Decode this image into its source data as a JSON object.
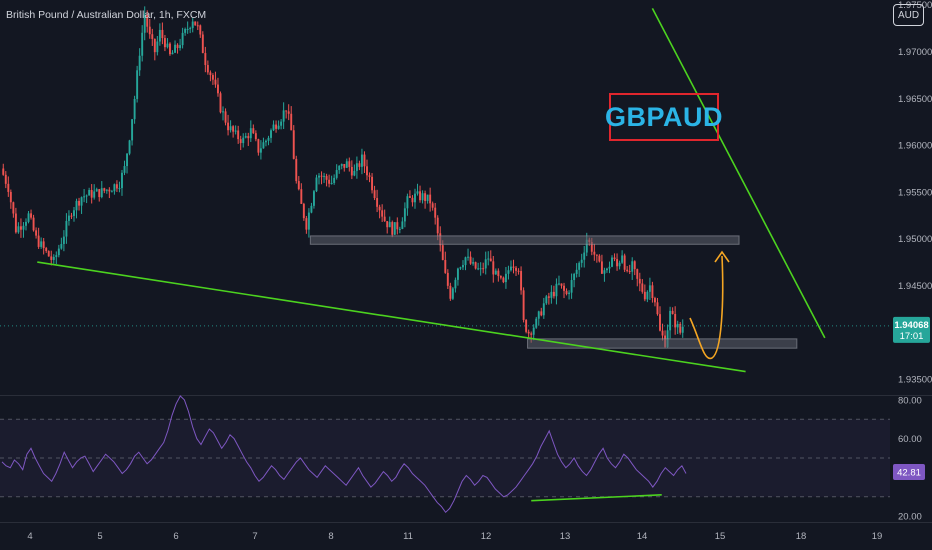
{
  "header": {
    "symbol_title": "British Pound / Australian Dollar, 1h, FXCM"
  },
  "currency_button": {
    "label": "AUD"
  },
  "annotation": {
    "label": "GBPAUD"
  },
  "colors": {
    "background": "#131722",
    "bull": "#26a69a",
    "bear": "#ef5350",
    "trendline": "#4cd31f",
    "zone": "#5d606b",
    "arrow": "#f5a623",
    "rsi_line": "#7e57c2",
    "badge_border": "#e0262d",
    "badge_text": "#2bb4e6"
  },
  "chart_data": [
    {
      "type": "candlestick",
      "title": "British Pound / Australian Dollar, 1h, FXCM",
      "y_ticks": [
        "1.97000",
        "1.96500",
        "1.96000",
        "1.95500",
        "1.95000",
        "1.94500",
        "1.93500"
      ],
      "y_top_partial": "1.97500",
      "x_ticks": [
        "4",
        "5",
        "6",
        "7",
        "8",
        "11",
        "12",
        "13",
        "14",
        "15",
        "18",
        "19"
      ],
      "current_price": "1.94068",
      "countdown": "17:01",
      "ylim": [
        1.9333,
        1.9755
      ],
      "price_path": [
        [
          0,
          1.9575
        ],
        [
          3,
          1.9555
        ],
        [
          6,
          1.951
        ],
        [
          8,
          1.9515
        ],
        [
          11,
          1.9525
        ],
        [
          14,
          1.95
        ],
        [
          18,
          1.9485
        ],
        [
          21,
          1.9475
        ],
        [
          25,
          1.9505
        ],
        [
          28,
          1.953
        ],
        [
          32,
          1.9545
        ],
        [
          36,
          1.9548
        ],
        [
          40,
          1.955
        ],
        [
          44,
          1.9555
        ],
        [
          47,
          1.956
        ],
        [
          49,
          1.9575
        ],
        [
          51,
          1.961
        ],
        [
          53,
          1.965
        ],
        [
          55,
          1.97
        ],
        [
          57,
          1.974
        ],
        [
          59,
          1.9715
        ],
        [
          61,
          1.97
        ],
        [
          63,
          1.972
        ],
        [
          65,
          1.971
        ],
        [
          67,
          1.9695
        ],
        [
          70,
          1.9705
        ],
        [
          73,
          1.972
        ],
        [
          76,
          1.9735
        ],
        [
          78,
          1.9725
        ],
        [
          81,
          1.969
        ],
        [
          84,
          1.967
        ],
        [
          87,
          1.964
        ],
        [
          90,
          1.962
        ],
        [
          93,
          1.961
        ],
        [
          96,
          1.9605
        ],
        [
          99,
          1.9615
        ],
        [
          102,
          1.9595
        ],
        [
          105,
          1.9605
        ],
        [
          108,
          1.962
        ],
        [
          111,
          1.963
        ],
        [
          113,
          1.964
        ],
        [
          115,
          1.9615
        ],
        [
          117,
          1.956
        ],
        [
          119,
          1.9535
        ],
        [
          121,
          1.9515
        ],
        [
          123,
          1.954
        ],
        [
          125,
          1.957
        ],
        [
          128,
          1.9565
        ],
        [
          131,
          1.956
        ],
        [
          134,
          1.9575
        ],
        [
          137,
          1.958
        ],
        [
          140,
          1.957
        ],
        [
          143,
          1.9585
        ],
        [
          146,
          1.9565
        ],
        [
          149,
          1.954
        ],
        [
          152,
          1.952
        ],
        [
          155,
          1.951
        ],
        [
          158,
          1.9515
        ],
        [
          161,
          1.954
        ],
        [
          164,
          1.9545
        ],
        [
          167,
          1.9545
        ],
        [
          170,
          1.954
        ],
        [
          172,
          1.952
        ],
        [
          174,
          1.949
        ],
        [
          176,
          1.946
        ],
        [
          178,
          1.944
        ],
        [
          181,
          1.947
        ],
        [
          184,
          1.948
        ],
        [
          187,
          1.947
        ],
        [
          190,
          1.9465
        ],
        [
          193,
          1.948
        ],
        [
          196,
          1.946
        ],
        [
          199,
          1.945
        ],
        [
          202,
          1.9475
        ],
        [
          205,
          1.947
        ],
        [
          207,
          1.941
        ],
        [
          209,
          1.94
        ],
        [
          212,
          1.941
        ],
        [
          215,
          1.943
        ],
        [
          218,
          1.944
        ],
        [
          221,
          1.945
        ],
        [
          224,
          1.944
        ],
        [
          227,
          1.946
        ],
        [
          230,
          1.948
        ],
        [
          232,
          1.95
        ],
        [
          234,
          1.949
        ],
        [
          237,
          1.947
        ],
        [
          240,
          1.9465
        ],
        [
          242,
          1.948
        ],
        [
          244,
          1.947
        ],
        [
          246,
          1.9485
        ],
        [
          248,
          1.946
        ],
        [
          250,
          1.947
        ],
        [
          252,
          1.9455
        ],
        [
          255,
          1.944
        ],
        [
          257,
          1.945
        ],
        [
          259,
          1.9435
        ],
        [
          261,
          1.94
        ],
        [
          263,
          1.939
        ],
        [
          265,
          1.942
        ],
        [
          267,
          1.941
        ],
        [
          269,
          1.94
        ],
        [
          270,
          1.94068
        ]
      ],
      "trendlines": [
        {
          "name": "upper",
          "from": [
            0.7,
            1.9746
          ],
          "to": [
            0.885,
            1.9394
          ]
        },
        {
          "name": "lower",
          "from": [
            0.04,
            1.9475
          ],
          "to": [
            0.8,
            1.9358
          ]
        }
      ],
      "zones": [
        {
          "name": "resistance-zone",
          "x_range": [
            0.333,
            0.793
          ],
          "y_range": [
            1.9494,
            1.9503
          ]
        },
        {
          "name": "support-zone",
          "x_range": [
            0.566,
            0.855
          ],
          "y_range": [
            1.9383,
            1.9393
          ]
        }
      ]
    },
    {
      "type": "line",
      "title": "RSI",
      "y_ticks": [
        "80.00",
        "60.00",
        "20.00"
      ],
      "current_value": "42.81",
      "ylim": [
        17,
        82
      ],
      "band": [
        30,
        70
      ],
      "values": [
        48,
        46,
        45,
        49,
        47,
        44,
        52,
        55,
        50,
        46,
        42,
        40,
        38,
        42,
        47,
        53,
        49,
        45,
        48,
        50,
        51,
        47,
        43,
        46,
        49,
        52,
        50,
        48,
        45,
        42,
        44,
        47,
        51,
        53,
        50,
        47,
        49,
        52,
        55,
        58,
        64,
        72,
        78,
        82,
        80,
        74,
        66,
        60,
        57,
        61,
        65,
        63,
        59,
        55,
        58,
        62,
        60,
        56,
        52,
        48,
        45,
        41,
        38,
        40,
        43,
        46,
        44,
        41,
        39,
        42,
        45,
        48,
        50,
        47,
        44,
        42,
        40,
        43,
        46,
        44,
        42,
        40,
        38,
        36,
        39,
        42,
        45,
        41,
        38,
        35,
        37,
        40,
        43,
        41,
        38,
        40,
        44,
        47,
        45,
        42,
        40,
        38,
        36,
        33,
        30,
        27,
        25,
        22,
        24,
        28,
        33,
        38,
        41,
        39,
        36,
        38,
        41,
        40,
        37,
        34,
        32,
        30,
        31,
        33,
        35,
        38,
        41,
        44,
        47,
        51,
        56,
        60,
        64,
        58,
        52,
        48,
        45,
        47,
        50,
        46,
        43,
        41,
        44,
        48,
        52,
        55,
        50,
        47,
        45,
        48,
        52,
        50,
        47,
        44,
        42,
        40,
        38,
        35,
        38,
        42,
        45,
        43,
        41,
        44,
        46,
        42
      ],
      "divergence_line": {
        "from": [
          0.57,
          28
        ],
        "to": [
          0.71,
          31
        ]
      }
    }
  ]
}
